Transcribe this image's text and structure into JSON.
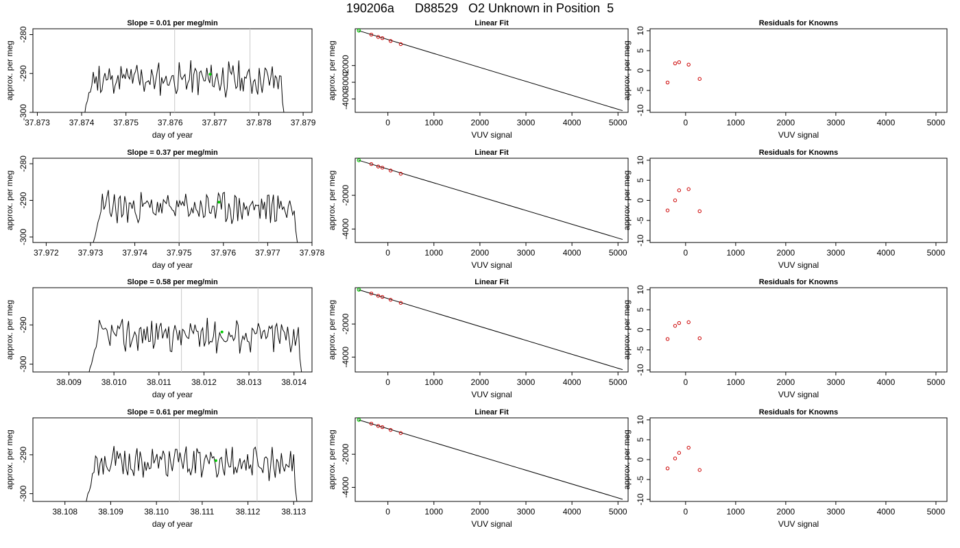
{
  "title": "190206a      D88529   O2 Unknown in Position  5",
  "colors": {
    "trace": "#000000",
    "vline": "#c8c8c8",
    "green": "#00cc00",
    "red": "#cc0000",
    "axis": "#000000"
  },
  "chart_data": [
    {
      "type": "line",
      "panel": "slope",
      "row": 0,
      "title": "Slope =  0.01  per meg/min",
      "xlabel": "day of year",
      "ylabel": "approx. per meg",
      "xlim": [
        37.8729,
        37.8792
      ],
      "ylim": [
        -300,
        -278.5
      ],
      "xticks": [
        "37.873",
        "37.874",
        "37.875",
        "37.876",
        "37.877",
        "37.878",
        "37.879"
      ],
      "yticks": [
        "-300",
        "-290",
        "-280"
      ],
      "start": 37.874,
      "end": 37.8786,
      "base": -291.5,
      "seed": 11,
      "vlines": [
        37.8761,
        37.8778
      ],
      "green_point": [
        37.8769,
        -290.2
      ]
    },
    {
      "type": "line",
      "panel": "fit",
      "row": 0,
      "title": "Linear Fit",
      "xlabel": "VUV signal",
      "ylabel": "approx. per meg",
      "xlim": [
        -710,
        5220
      ],
      "ylim": [
        -4800,
        200
      ],
      "xticks": [
        "0",
        "1000",
        "2000",
        "3000",
        "4000",
        "5000"
      ],
      "yticks": [
        "-4000",
        "-3000",
        "-2000"
      ],
      "line": [
        [
          -640,
          90
        ],
        [
          5100,
          -4700
        ]
      ],
      "knowns": [
        [
          -360,
          -150
        ],
        [
          -210,
          -290
        ],
        [
          -120,
          -360
        ],
        [
          60,
          -530
        ],
        [
          280,
          -720
        ]
      ],
      "unknown": [
        -630,
        90
      ]
    },
    {
      "type": "scatter",
      "panel": "resid",
      "row": 0,
      "title": "Residuals for Knowns",
      "xlabel": "VUV signal",
      "ylabel": "approx. per meg",
      "xlim": [
        -710,
        5220
      ],
      "ylim": [
        -10.5,
        10.5
      ],
      "xticks": [
        "0",
        "1000",
        "2000",
        "3000",
        "4000",
        "5000"
      ],
      "yticks": [
        "-10",
        "-5",
        "0",
        "5",
        "10"
      ],
      "points": [
        [
          -360,
          -3
        ],
        [
          -210,
          1.8
        ],
        [
          -130,
          2.1
        ],
        [
          60,
          1.5
        ],
        [
          280,
          -2.1
        ]
      ]
    },
    {
      "type": "line",
      "panel": "slope",
      "row": 1,
      "title": "Slope =  0.37  per meg/min",
      "xlabel": "day of year",
      "ylabel": "approx. per meg",
      "xlim": [
        37.9717,
        37.978
      ],
      "ylim": [
        -301.5,
        -278.5
      ],
      "xticks": [
        "37.972",
        "37.973",
        "37.974",
        "37.975",
        "37.976",
        "37.977",
        "37.978"
      ],
      "yticks": [
        "-300",
        "-290",
        "-280"
      ],
      "start": 37.973,
      "end": 37.9777,
      "base": -292,
      "seed": 23,
      "vlines": [
        37.975,
        37.9768
      ],
      "green_point": [
        37.9759,
        -290.5
      ]
    },
    {
      "type": "line",
      "panel": "fit",
      "row": 1,
      "title": "Linear Fit",
      "xlabel": "VUV signal",
      "ylabel": "approx. per meg",
      "xlim": [
        -710,
        5220
      ],
      "ylim": [
        -4800,
        200
      ],
      "xticks": [
        "0",
        "1000",
        "2000",
        "3000",
        "4000",
        "5000"
      ],
      "yticks": [
        "-4000",
        "-2000"
      ],
      "line": [
        [
          -640,
          80
        ],
        [
          5100,
          -4620
        ]
      ],
      "knowns": [
        [
          -360,
          -150
        ],
        [
          -210,
          -290
        ],
        [
          -120,
          -360
        ],
        [
          60,
          -530
        ],
        [
          280,
          -720
        ]
      ],
      "unknown": [
        -630,
        80
      ]
    },
    {
      "type": "scatter",
      "panel": "resid",
      "row": 1,
      "title": "Residuals for Knowns",
      "xlabel": "VUV signal",
      "ylabel": "approx. per meg",
      "xlim": [
        -710,
        5220
      ],
      "ylim": [
        -10.5,
        10.5
      ],
      "xticks": [
        "0",
        "1000",
        "2000",
        "3000",
        "4000",
        "5000"
      ],
      "yticks": [
        "-10",
        "-5",
        "0",
        "5",
        "10"
      ],
      "points": [
        [
          -360,
          -2.5
        ],
        [
          -210,
          0
        ],
        [
          -130,
          2.5
        ],
        [
          60,
          2.8
        ],
        [
          280,
          -2.7
        ]
      ]
    },
    {
      "type": "line",
      "panel": "slope",
      "row": 2,
      "title": "Slope =  0.58  per meg/min",
      "xlabel": "day of year",
      "ylabel": "approx. per meg",
      "xlim": [
        38.0082,
        38.0144
      ],
      "ylim": [
        -302,
        -280.5
      ],
      "xticks": [
        "38.009",
        "38.010",
        "38.011",
        "38.012",
        "38.013",
        "38.014"
      ],
      "yticks": [
        "-300",
        "-290"
      ],
      "start": 38.0094,
      "end": 38.0142,
      "base": -292.5,
      "seed": 37,
      "vlines": [
        38.0115,
        38.0132
      ],
      "green_point": [
        38.0124,
        -291.8
      ]
    },
    {
      "type": "line",
      "panel": "fit",
      "row": 2,
      "title": "Linear Fit",
      "xlabel": "VUV signal",
      "ylabel": "approx. per meg",
      "xlim": [
        -710,
        5220
      ],
      "ylim": [
        -4900,
        200
      ],
      "xticks": [
        "0",
        "1000",
        "2000",
        "3000",
        "4000",
        "5000"
      ],
      "yticks": [
        "-4000",
        "-2000"
      ],
      "line": [
        [
          -640,
          80
        ],
        [
          5100,
          -4760
        ]
      ],
      "knowns": [
        [
          -360,
          -150
        ],
        [
          -210,
          -290
        ],
        [
          -120,
          -360
        ],
        [
          60,
          -530
        ],
        [
          280,
          -720
        ]
      ],
      "unknown": [
        -630,
        80
      ]
    },
    {
      "type": "scatter",
      "panel": "resid",
      "row": 2,
      "title": "Residuals for Knowns",
      "xlabel": "VUV signal",
      "ylabel": "approx. per meg",
      "xlim": [
        -710,
        5220
      ],
      "ylim": [
        -10.5,
        10.5
      ],
      "xticks": [
        "0",
        "1000",
        "2000",
        "3000",
        "4000",
        "5000"
      ],
      "yticks": [
        "-10",
        "-5",
        "0",
        "5",
        "10"
      ],
      "points": [
        [
          -360,
          -2.3
        ],
        [
          -210,
          1
        ],
        [
          -130,
          1.7
        ],
        [
          60,
          1.9
        ],
        [
          280,
          -2.1
        ]
      ]
    },
    {
      "type": "line",
      "panel": "slope",
      "row": 3,
      "title": "Slope =  0.61  per meg/min",
      "xlabel": "day of year",
      "ylabel": "approx. per meg",
      "xlim": [
        38.1073,
        38.1134
      ],
      "ylim": [
        -302,
        -280.5
      ],
      "xticks": [
        "38.108",
        "38.109",
        "38.110",
        "38.111",
        "38.112",
        "38.113"
      ],
      "yticks": [
        "-300",
        "-290"
      ],
      "start": 38.1084,
      "end": 38.1131,
      "base": -292,
      "seed": 53,
      "vlines": [
        38.1105,
        38.1122
      ],
      "green_point": [
        38.1113,
        -291.5
      ]
    },
    {
      "type": "line",
      "panel": "fit",
      "row": 3,
      "title": "Linear Fit",
      "xlabel": "VUV signal",
      "ylabel": "approx. per meg",
      "xlim": [
        -710,
        5220
      ],
      "ylim": [
        -4850,
        200
      ],
      "xticks": [
        "0",
        "1000",
        "2000",
        "3000",
        "4000",
        "5000"
      ],
      "yticks": [
        "-4000",
        "-2000"
      ],
      "line": [
        [
          -640,
          80
        ],
        [
          5100,
          -4720
        ]
      ],
      "knowns": [
        [
          -360,
          -150
        ],
        [
          -210,
          -290
        ],
        [
          -120,
          -360
        ],
        [
          60,
          -530
        ],
        [
          280,
          -720
        ]
      ],
      "unknown": [
        -630,
        80
      ]
    },
    {
      "type": "scatter",
      "panel": "resid",
      "row": 3,
      "title": "Residuals for Knowns",
      "xlabel": "VUV signal",
      "ylabel": "approx. per meg",
      "xlim": [
        -710,
        5220
      ],
      "ylim": [
        -10.5,
        10.5
      ],
      "xticks": [
        "0",
        "1000",
        "2000",
        "3000",
        "4000",
        "5000"
      ],
      "yticks": [
        "-10",
        "-5",
        "0",
        "5",
        "10"
      ],
      "points": [
        [
          -360,
          -2.2
        ],
        [
          -210,
          0.3
        ],
        [
          -130,
          1.7
        ],
        [
          60,
          3
        ],
        [
          280,
          -2.6
        ]
      ]
    }
  ]
}
